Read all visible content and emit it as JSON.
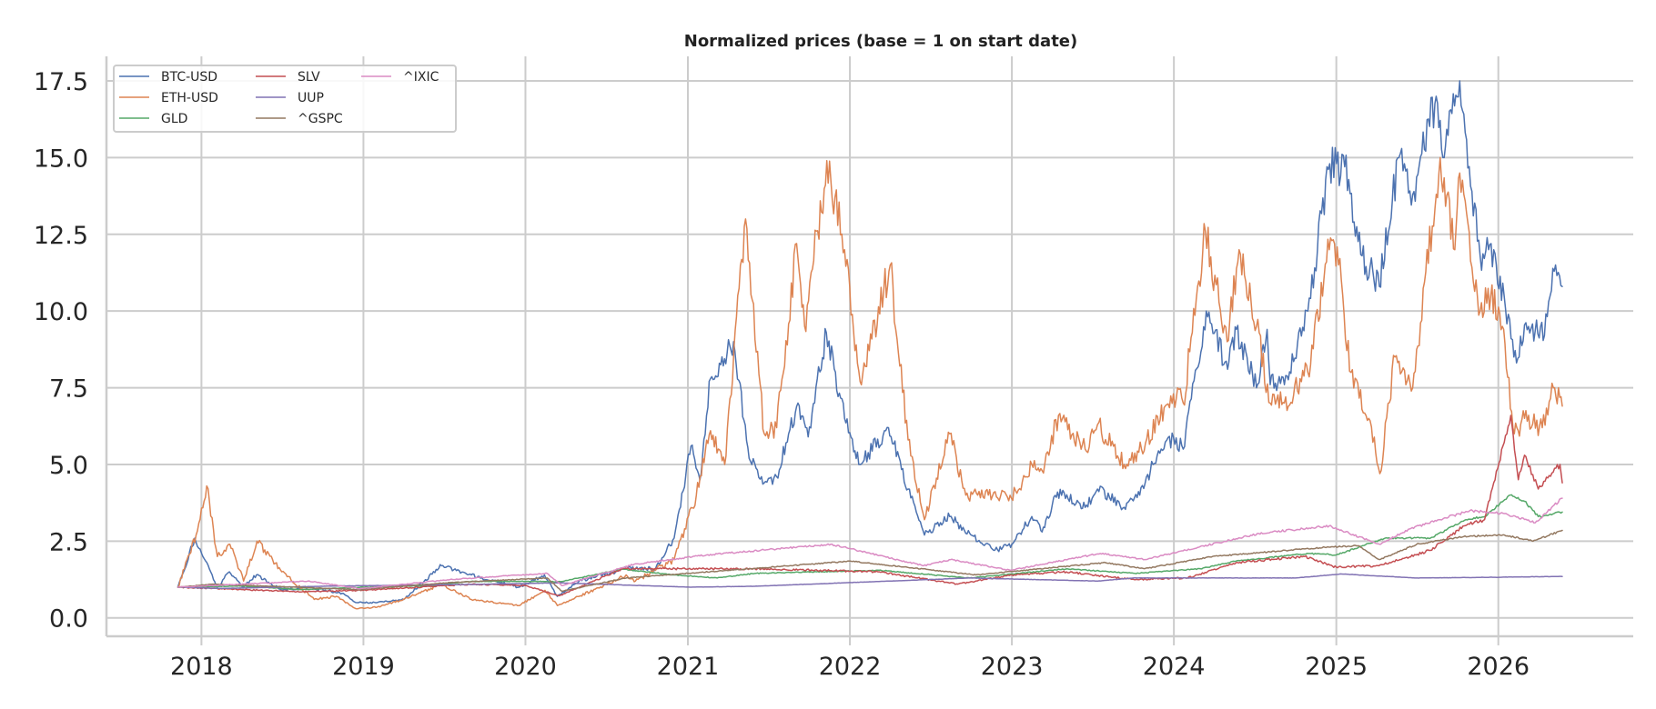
{
  "chart_data": {
    "type": "line",
    "title": "Normalized prices (base = 1 on start date)",
    "xlabel": "",
    "ylabel": "",
    "x_range": [
      "2017-06-01",
      "2026-11-01"
    ],
    "ylim": [
      -0.6,
      18.3
    ],
    "x_ticks": [
      "2018",
      "2019",
      "2020",
      "2021",
      "2022",
      "2023",
      "2024",
      "2025",
      "2026"
    ],
    "y_ticks": [
      "0.0",
      "2.5",
      "5.0",
      "7.5",
      "10.0",
      "12.5",
      "15.0",
      "17.5"
    ],
    "grid": true,
    "legend": {
      "placement": "top-left",
      "columns": 3
    },
    "series": [
      {
        "name": "BTC-USD",
        "color": "#4c72b0",
        "points": [
          [
            "2017-11-09",
            1.0
          ],
          [
            "2017-12-17",
            2.6
          ],
          [
            "2018-02-06",
            1.0
          ],
          [
            "2018-03-05",
            1.5
          ],
          [
            "2018-04-06",
            1.0
          ],
          [
            "2018-05-05",
            1.4
          ],
          [
            "2018-07-01",
            0.9
          ],
          [
            "2018-09-01",
            1.0
          ],
          [
            "2018-11-14",
            0.8
          ],
          [
            "2018-12-15",
            0.5
          ],
          [
            "2019-02-01",
            0.5
          ],
          [
            "2019-04-02",
            0.6
          ],
          [
            "2019-06-26",
            1.7
          ],
          [
            "2019-09-01",
            1.4
          ],
          [
            "2019-12-17",
            1.0
          ],
          [
            "2020-02-13",
            1.4
          ],
          [
            "2020-03-13",
            0.7
          ],
          [
            "2020-05-01",
            1.2
          ],
          [
            "2020-08-15",
            1.6
          ],
          [
            "2020-10-20",
            1.6
          ],
          [
            "2020-12-01",
            2.6
          ],
          [
            "2021-01-08",
            5.6
          ],
          [
            "2021-01-28",
            4.5
          ],
          [
            "2021-02-21",
            7.8
          ],
          [
            "2021-03-13",
            8.3
          ],
          [
            "2021-04-14",
            9.0
          ],
          [
            "2021-05-19",
            5.2
          ],
          [
            "2021-06-22",
            4.4
          ],
          [
            "2021-07-20",
            4.6
          ],
          [
            "2021-09-06",
            7.0
          ],
          [
            "2021-09-29",
            5.9
          ],
          [
            "2021-11-09",
            9.3
          ],
          [
            "2021-12-20",
            6.5
          ],
          [
            "2022-01-24",
            5.0
          ],
          [
            "2022-03-29",
            6.2
          ],
          [
            "2022-05-12",
            4.2
          ],
          [
            "2022-06-18",
            2.7
          ],
          [
            "2022-08-14",
            3.3
          ],
          [
            "2022-10-01",
            2.7
          ],
          [
            "2022-11-21",
            2.2
          ],
          [
            "2023-01-01",
            2.4
          ],
          [
            "2023-02-15",
            3.3
          ],
          [
            "2023-03-10",
            2.8
          ],
          [
            "2023-04-14",
            4.1
          ],
          [
            "2023-06-15",
            3.6
          ],
          [
            "2023-07-13",
            4.2
          ],
          [
            "2023-09-11",
            3.6
          ],
          [
            "2023-10-16",
            4.0
          ],
          [
            "2023-11-15",
            5.0
          ],
          [
            "2023-12-31",
            5.9
          ],
          [
            "2024-01-22",
            5.5
          ],
          [
            "2024-03-14",
            10.0
          ],
          [
            "2024-05-01",
            8.1
          ],
          [
            "2024-05-21",
            9.4
          ],
          [
            "2024-07-05",
            7.5
          ],
          [
            "2024-07-29",
            9.4
          ],
          [
            "2024-08-05",
            7.6
          ],
          [
            "2024-09-06",
            7.6
          ],
          [
            "2024-10-29",
            10.0
          ],
          [
            "2024-12-17",
            14.8
          ],
          [
            "2025-01-20",
            14.7
          ],
          [
            "2025-02-28",
            11.8
          ],
          [
            "2025-04-08",
            10.8
          ],
          [
            "2025-05-22",
            15.0
          ],
          [
            "2025-06-22",
            13.8
          ],
          [
            "2025-08-14",
            17.0
          ],
          [
            "2025-09-01",
            15.0
          ],
          [
            "2025-10-06",
            17.5
          ],
          [
            "2025-11-21",
            11.8
          ],
          [
            "2025-12-10",
            12.0
          ],
          [
            "2026-01-14",
            10.5
          ],
          [
            "2026-02-05",
            8.5
          ],
          [
            "2026-03-10",
            9.5
          ],
          [
            "2026-04-15",
            9.2
          ],
          [
            "2026-05-10",
            11.5
          ],
          [
            "2026-05-25",
            10.8
          ]
        ]
      },
      {
        "name": "ETH-USD",
        "color": "#dd8452",
        "points": [
          [
            "2017-11-09",
            1.0
          ],
          [
            "2017-12-20",
            2.7
          ],
          [
            "2018-01-13",
            4.3
          ],
          [
            "2018-02-06",
            2.0
          ],
          [
            "2018-03-06",
            2.4
          ],
          [
            "2018-04-06",
            1.2
          ],
          [
            "2018-05-06",
            2.5
          ],
          [
            "2018-07-01",
            1.5
          ],
          [
            "2018-09-12",
            0.6
          ],
          [
            "2018-11-01",
            0.7
          ],
          [
            "2018-12-15",
            0.3
          ],
          [
            "2019-02-01",
            0.35
          ],
          [
            "2019-04-01",
            0.6
          ],
          [
            "2019-06-26",
            1.1
          ],
          [
            "2019-09-01",
            0.6
          ],
          [
            "2019-12-17",
            0.4
          ],
          [
            "2020-02-14",
            0.9
          ],
          [
            "2020-03-13",
            0.4
          ],
          [
            "2020-05-01",
            0.7
          ],
          [
            "2020-08-15",
            1.4
          ],
          [
            "2020-09-05",
            1.2
          ],
          [
            "2020-12-01",
            1.9
          ],
          [
            "2021-01-20",
            4.0
          ],
          [
            "2021-02-21",
            6.1
          ],
          [
            "2021-03-25",
            5.0
          ],
          [
            "2021-05-11",
            13.0
          ],
          [
            "2021-06-22",
            6.0
          ],
          [
            "2021-07-20",
            6.2
          ],
          [
            "2021-09-03",
            12.2
          ],
          [
            "2021-09-21",
            9.5
          ],
          [
            "2021-11-10",
            14.9
          ],
          [
            "2021-12-20",
            12.0
          ],
          [
            "2022-01-24",
            7.7
          ],
          [
            "2022-04-02",
            11.5
          ],
          [
            "2022-05-12",
            5.8
          ],
          [
            "2022-06-18",
            3.2
          ],
          [
            "2022-08-14",
            6.0
          ],
          [
            "2022-09-19",
            4.0
          ],
          [
            "2022-11-09",
            4.0
          ],
          [
            "2022-12-31",
            3.9
          ],
          [
            "2023-02-15",
            5.0
          ],
          [
            "2023-03-10",
            4.8
          ],
          [
            "2023-04-16",
            6.6
          ],
          [
            "2023-06-15",
            5.5
          ],
          [
            "2023-07-13",
            6.3
          ],
          [
            "2023-09-11",
            5.0
          ],
          [
            "2023-10-20",
            5.5
          ],
          [
            "2023-12-31",
            7.3
          ],
          [
            "2024-01-22",
            7.0
          ],
          [
            "2024-03-12",
            12.6
          ],
          [
            "2024-04-30",
            9.0
          ],
          [
            "2024-05-27",
            12.0
          ],
          [
            "2024-07-05",
            9.5
          ],
          [
            "2024-08-05",
            7.0
          ],
          [
            "2024-09-06",
            7.0
          ],
          [
            "2024-10-29",
            8.0
          ],
          [
            "2024-12-16",
            12.0
          ],
          [
            "2025-01-06",
            11.5
          ],
          [
            "2025-02-03",
            8.0
          ],
          [
            "2025-03-15",
            6.5
          ],
          [
            "2025-04-09",
            4.7
          ],
          [
            "2025-05-13",
            8.5
          ],
          [
            "2025-06-22",
            7.5
          ],
          [
            "2025-08-23",
            15.0
          ],
          [
            "2025-09-25",
            12.0
          ],
          [
            "2025-10-06",
            14.5
          ],
          [
            "2025-11-21",
            10.0
          ],
          [
            "2025-12-15",
            10.5
          ],
          [
            "2026-01-10",
            9.5
          ],
          [
            "2026-02-06",
            6.0
          ],
          [
            "2026-03-01",
            6.5
          ],
          [
            "2026-04-10",
            6.2
          ],
          [
            "2026-05-05",
            7.5
          ],
          [
            "2026-05-25",
            6.9
          ]
        ]
      },
      {
        "name": "GLD",
        "color": "#55a868",
        "points": [
          [
            "2017-11-09",
            1.0
          ],
          [
            "2018-04-01",
            1.04
          ],
          [
            "2018-08-15",
            0.92
          ],
          [
            "2019-01-01",
            1.0
          ],
          [
            "2019-06-01",
            1.05
          ],
          [
            "2019-09-01",
            1.19
          ],
          [
            "2020-01-01",
            1.19
          ],
          [
            "2020-03-20",
            1.18
          ],
          [
            "2020-08-06",
            1.59
          ],
          [
            "2020-12-01",
            1.4
          ],
          [
            "2021-03-08",
            1.3
          ],
          [
            "2021-06-01",
            1.45
          ],
          [
            "2022-03-08",
            1.55
          ],
          [
            "2022-09-28",
            1.3
          ],
          [
            "2023-05-04",
            1.6
          ],
          [
            "2023-10-05",
            1.45
          ],
          [
            "2024-03-01",
            1.6
          ],
          [
            "2024-05-20",
            1.85
          ],
          [
            "2024-10-30",
            2.1
          ],
          [
            "2025-01-01",
            2.05
          ],
          [
            "2025-04-21",
            2.6
          ],
          [
            "2025-08-01",
            2.6
          ],
          [
            "2025-10-20",
            3.2
          ],
          [
            "2025-12-01",
            3.3
          ],
          [
            "2026-01-28",
            4.0
          ],
          [
            "2026-03-01",
            3.8
          ],
          [
            "2026-04-01",
            3.3
          ],
          [
            "2026-05-25",
            3.45
          ]
        ]
      },
      {
        "name": "SLV",
        "color": "#c44e52",
        "points": [
          [
            "2017-11-09",
            1.0
          ],
          [
            "2018-08-15",
            0.85
          ],
          [
            "2019-01-01",
            0.9
          ],
          [
            "2019-09-04",
            1.1
          ],
          [
            "2020-01-01",
            1.05
          ],
          [
            "2020-03-18",
            0.72
          ],
          [
            "2020-08-07",
            1.6
          ],
          [
            "2021-02-01",
            1.6
          ],
          [
            "2021-06-01",
            1.6
          ],
          [
            "2022-03-08",
            1.5
          ],
          [
            "2022-09-01",
            1.1
          ],
          [
            "2023-01-01",
            1.4
          ],
          [
            "2023-05-04",
            1.5
          ],
          [
            "2023-10-03",
            1.25
          ],
          [
            "2024-02-01",
            1.3
          ],
          [
            "2024-05-20",
            1.8
          ],
          [
            "2024-10-22",
            2.0
          ],
          [
            "2025-01-01",
            1.65
          ],
          [
            "2025-04-07",
            1.7
          ],
          [
            "2025-08-01",
            2.2
          ],
          [
            "2025-10-16",
            3.0
          ],
          [
            "2025-12-01",
            3.2
          ],
          [
            "2026-01-29",
            6.6
          ],
          [
            "2026-02-15",
            4.5
          ],
          [
            "2026-03-01",
            5.3
          ],
          [
            "2026-04-01",
            4.2
          ],
          [
            "2026-05-20",
            5.0
          ],
          [
            "2026-05-25",
            4.4
          ]
        ]
      },
      {
        "name": "UUP",
        "color": "#8172b3",
        "points": [
          [
            "2017-11-09",
            1.0
          ],
          [
            "2018-02-15",
            0.96
          ],
          [
            "2018-11-01",
            1.04
          ],
          [
            "2019-09-01",
            1.09
          ],
          [
            "2020-03-19",
            1.14
          ],
          [
            "2021-01-06",
            1.0
          ],
          [
            "2021-06-01",
            1.03
          ],
          [
            "2022-09-28",
            1.3
          ],
          [
            "2023-07-14",
            1.2
          ],
          [
            "2023-10-01",
            1.3
          ],
          [
            "2024-10-01",
            1.3
          ],
          [
            "2025-01-13",
            1.43
          ],
          [
            "2025-06-30",
            1.3
          ],
          [
            "2025-12-01",
            1.32
          ],
          [
            "2026-05-25",
            1.35
          ]
        ]
      },
      {
        "name": "^GSPC",
        "color": "#937860",
        "points": [
          [
            "2017-11-09",
            1.0
          ],
          [
            "2018-01-26",
            1.1
          ],
          [
            "2018-12-24",
            0.92
          ],
          [
            "2019-07-15",
            1.15
          ],
          [
            "2020-02-19",
            1.3
          ],
          [
            "2020-03-23",
            0.87
          ],
          [
            "2020-08-15",
            1.3
          ],
          [
            "2021-01-01",
            1.45
          ],
          [
            "2022-01-03",
            1.85
          ],
          [
            "2022-10-12",
            1.4
          ],
          [
            "2023-07-31",
            1.8
          ],
          [
            "2023-10-27",
            1.6
          ],
          [
            "2024-03-28",
            2.0
          ],
          [
            "2024-12-06",
            2.3
          ],
          [
            "2025-02-19",
            2.35
          ],
          [
            "2025-04-08",
            1.9
          ],
          [
            "2025-07-01",
            2.4
          ],
          [
            "2025-10-15",
            2.65
          ],
          [
            "2026-01-15",
            2.7
          ],
          [
            "2026-03-20",
            2.5
          ],
          [
            "2026-05-25",
            2.85
          ]
        ]
      },
      {
        "name": "^IXIC",
        "color": "#da8bc3",
        "points": [
          [
            "2017-11-09",
            1.0
          ],
          [
            "2018-08-29",
            1.2
          ],
          [
            "2018-12-24",
            0.95
          ],
          [
            "2019-07-15",
            1.25
          ],
          [
            "2020-02-19",
            1.45
          ],
          [
            "2020-03-23",
            1.05
          ],
          [
            "2020-09-02",
            1.75
          ],
          [
            "2021-02-12",
            2.05
          ],
          [
            "2021-11-19",
            2.4
          ],
          [
            "2022-06-16",
            1.7
          ],
          [
            "2022-08-16",
            1.9
          ],
          [
            "2022-12-28",
            1.55
          ],
          [
            "2023-07-19",
            2.1
          ],
          [
            "2023-10-27",
            1.9
          ],
          [
            "2024-07-10",
            2.75
          ],
          [
            "2024-12-16",
            3.0
          ],
          [
            "2025-04-08",
            2.4
          ],
          [
            "2025-06-15",
            2.9
          ],
          [
            "2025-10-29",
            3.5
          ],
          [
            "2026-01-15",
            3.4
          ],
          [
            "2026-03-25",
            3.1
          ],
          [
            "2026-05-25",
            3.9
          ]
        ]
      }
    ]
  }
}
